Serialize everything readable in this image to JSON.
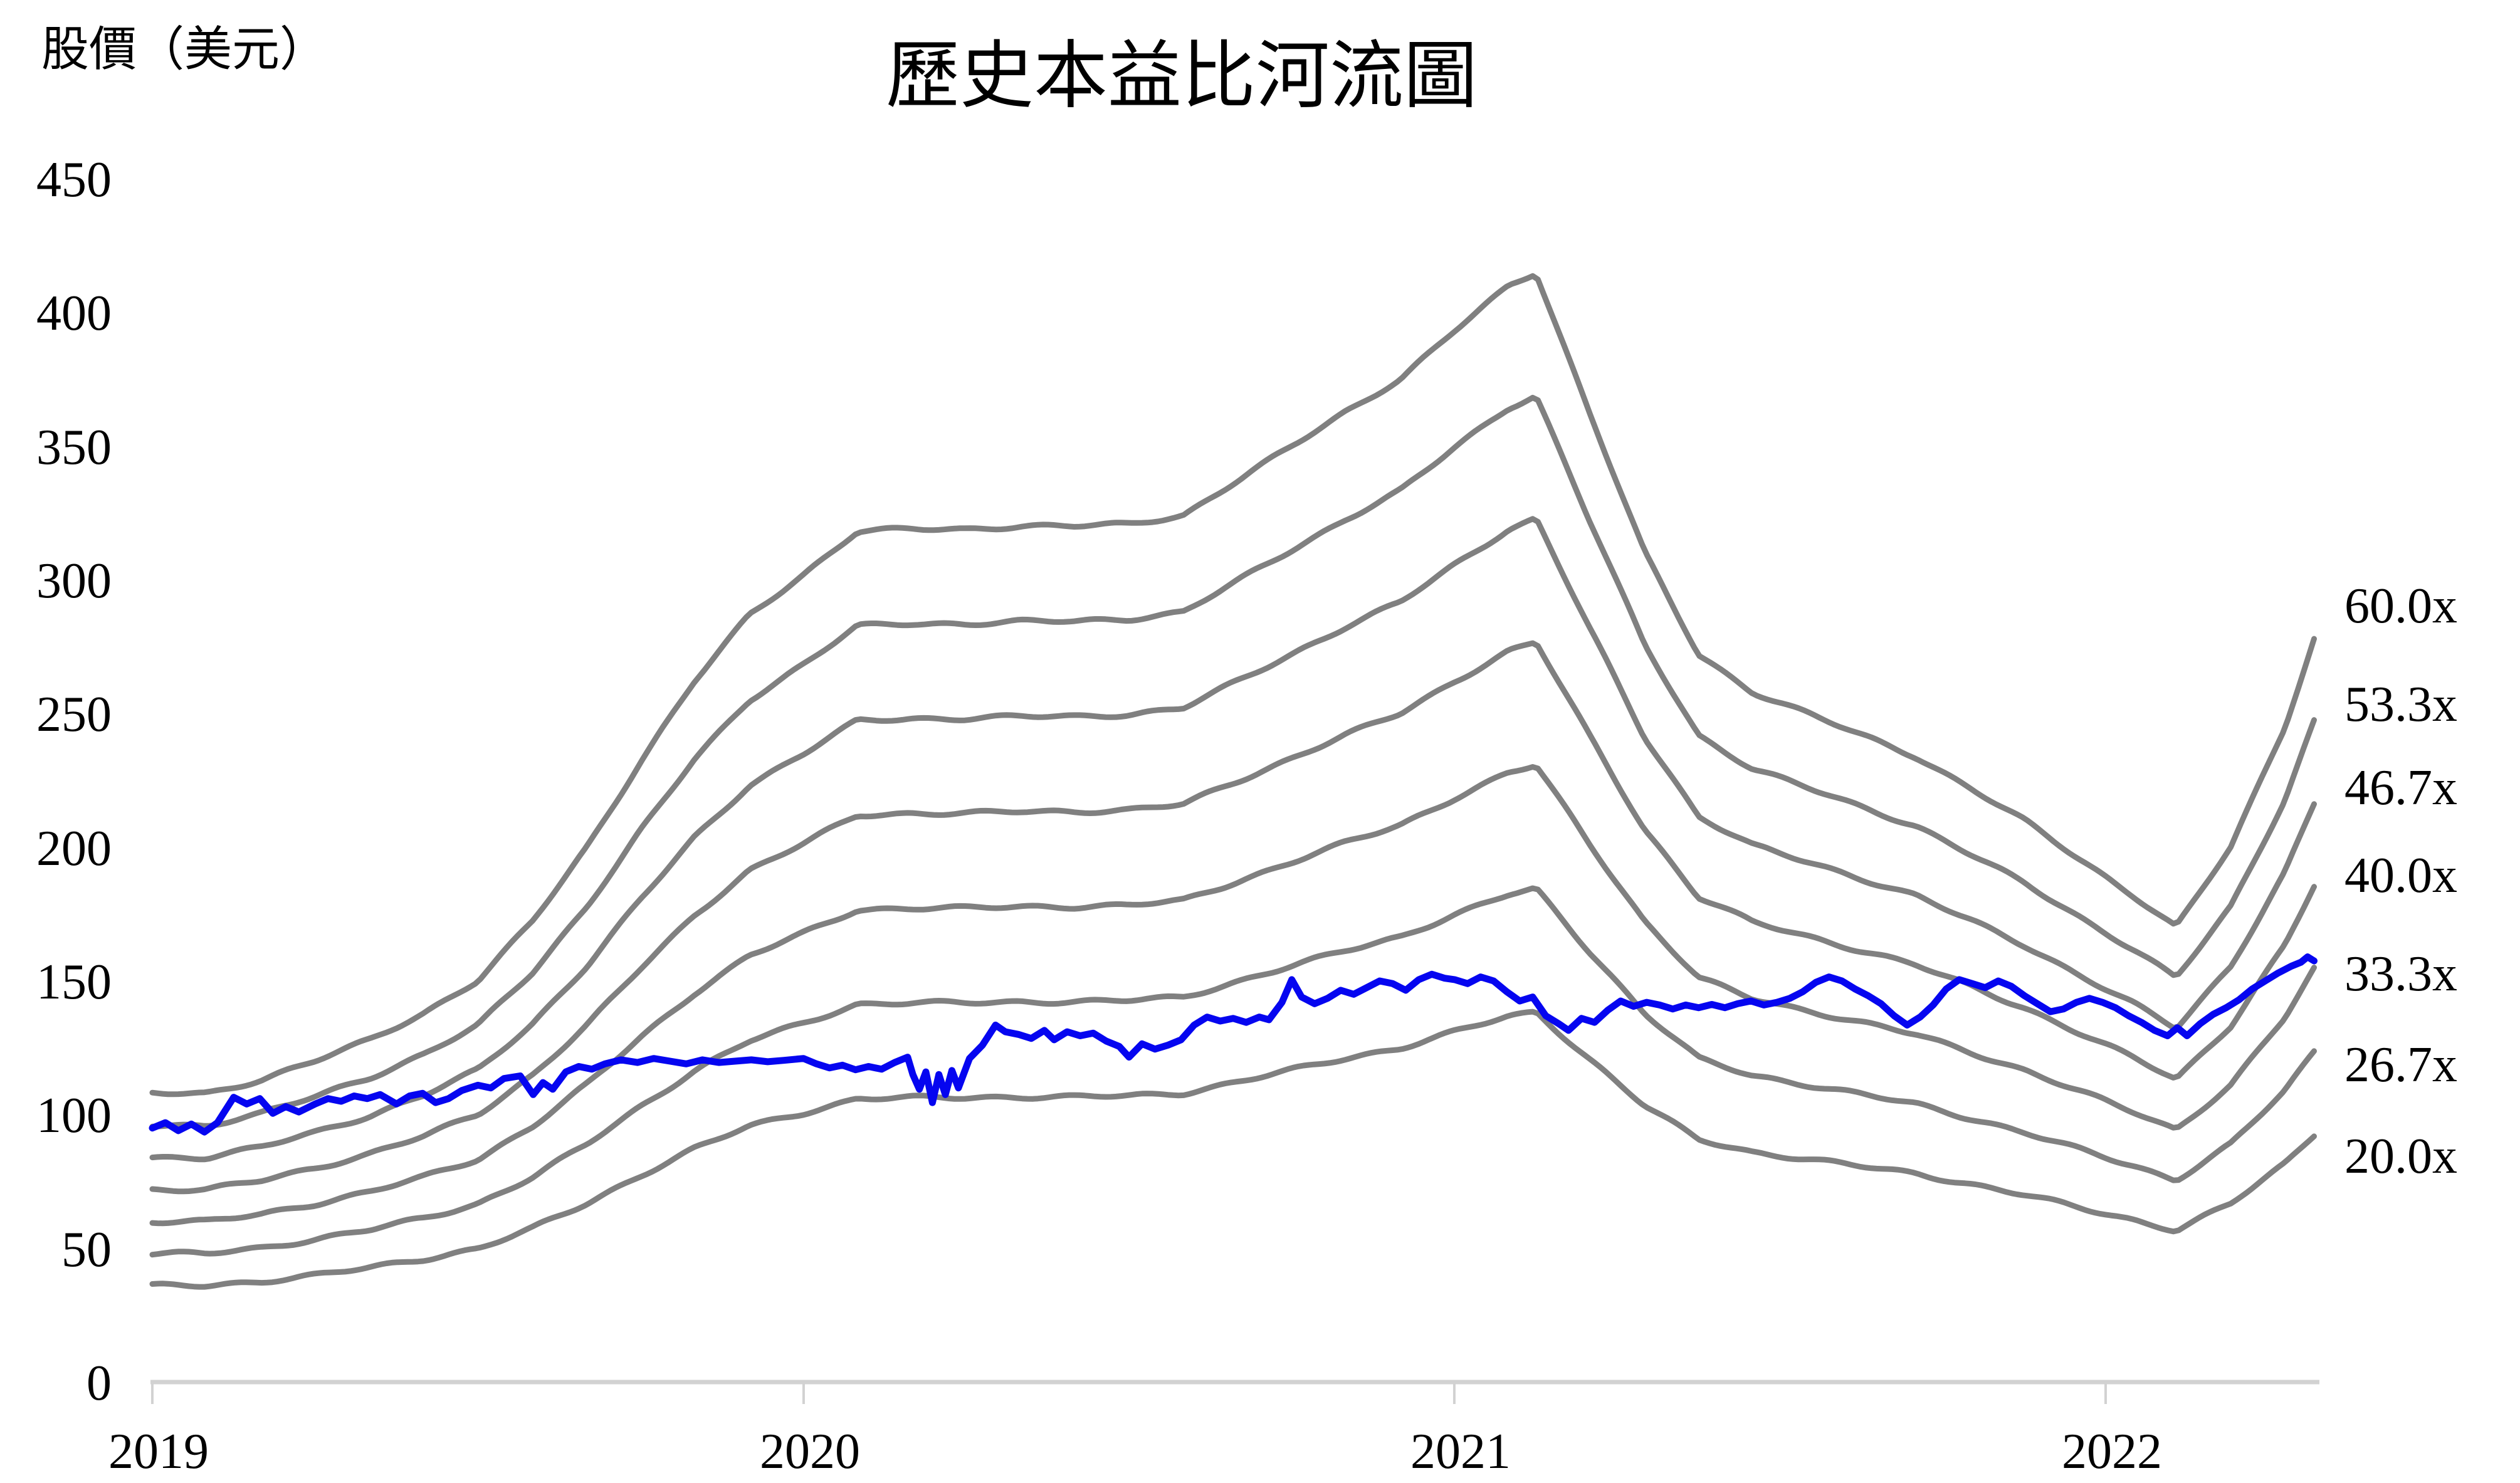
{
  "chart_data": {
    "type": "line",
    "title": "歷史本益比河流圖",
    "y_axis_label": "股價（美元）",
    "ylim": [
      0,
      450
    ],
    "y_tick_step": 50,
    "y_tick_labels": [
      "450",
      "400",
      "350",
      "300",
      "250",
      "200",
      "150",
      "100",
      "50",
      "0"
    ],
    "x_tick_labels": [
      "2019",
      "2020",
      "2021",
      "2022"
    ],
    "x_range_years": [
      2019.0,
      2022.32
    ],
    "grid": "off",
    "legend_position": "right-edge-labels",
    "colors": {
      "pe_bands": "#808080",
      "price": "#0505f0",
      "axis": "#d2d2d2",
      "text": "#000000",
      "background": "#ffffff"
    },
    "pe_bands": {
      "labels": [
        "60.0x",
        "53.3x",
        "46.7x",
        "40.0x",
        "33.3x",
        "26.7x",
        "20.0x"
      ],
      "multiples": [
        60,
        53.333,
        46.667,
        40,
        33.333,
        26.667,
        20
      ],
      "structure_note": "river chart: every band equals the 60.0x band scaled by multiple/60",
      "band_60x_points": [
        [
          0.0,
          108
        ],
        [
          0.083,
          108
        ],
        [
          0.167,
          113
        ],
        [
          0.25,
          120
        ],
        [
          0.333,
          128
        ],
        [
          0.417,
          138
        ],
        [
          0.5,
          150
        ],
        [
          0.583,
          172
        ],
        [
          0.667,
          200
        ],
        [
          0.75,
          232
        ],
        [
          0.833,
          262
        ],
        [
          0.917,
          287
        ],
        [
          1.0,
          302
        ],
        [
          1.083,
          318
        ],
        [
          1.167,
          319
        ],
        [
          1.25,
          319
        ],
        [
          1.333,
          320
        ],
        [
          1.417,
          320
        ],
        [
          1.5,
          321
        ],
        [
          1.583,
          324
        ],
        [
          1.667,
          337
        ],
        [
          1.75,
          350
        ],
        [
          1.833,
          363
        ],
        [
          1.917,
          375
        ],
        [
          2.0,
          393
        ],
        [
          2.083,
          410
        ],
        [
          2.125,
          415
        ],
        [
          2.208,
          362
        ],
        [
          2.292,
          310
        ],
        [
          2.375,
          272
        ],
        [
          2.458,
          258
        ],
        [
          2.542,
          250
        ],
        [
          2.625,
          242
        ],
        [
          2.708,
          234
        ],
        [
          2.792,
          222
        ],
        [
          2.875,
          210
        ],
        [
          2.958,
          196
        ],
        [
          3.042,
          182
        ],
        [
          3.108,
          170
        ],
        [
          3.192,
          200
        ],
        [
          3.275,
          245
        ],
        [
          3.32,
          278
        ]
      ]
    },
    "price_series": {
      "name": "股價",
      "points": [
        [
          0.0,
          95
        ],
        [
          0.02,
          97
        ],
        [
          0.04,
          94
        ],
        [
          0.06,
          96.5
        ],
        [
          0.08,
          93.5
        ],
        [
          0.1,
          97
        ],
        [
          0.125,
          106.5
        ],
        [
          0.145,
          104
        ],
        [
          0.165,
          106
        ],
        [
          0.185,
          100.5
        ],
        [
          0.205,
          103
        ],
        [
          0.225,
          101
        ],
        [
          0.25,
          104
        ],
        [
          0.27,
          106
        ],
        [
          0.29,
          105
        ],
        [
          0.31,
          107
        ],
        [
          0.33,
          106
        ],
        [
          0.35,
          107.5
        ],
        [
          0.375,
          104
        ],
        [
          0.395,
          107
        ],
        [
          0.415,
          108
        ],
        [
          0.435,
          104.5
        ],
        [
          0.455,
          106
        ],
        [
          0.475,
          109
        ],
        [
          0.5,
          111
        ],
        [
          0.52,
          110
        ],
        [
          0.54,
          113.5
        ],
        [
          0.565,
          114.5
        ],
        [
          0.585,
          107.5
        ],
        [
          0.6,
          112
        ],
        [
          0.615,
          109.5
        ],
        [
          0.635,
          116
        ],
        [
          0.655,
          118
        ],
        [
          0.675,
          117
        ],
        [
          0.695,
          119
        ],
        [
          0.72,
          120.5
        ],
        [
          0.745,
          119.5
        ],
        [
          0.77,
          121
        ],
        [
          0.795,
          120
        ],
        [
          0.82,
          119
        ],
        [
          0.845,
          120.5
        ],
        [
          0.87,
          119.5
        ],
        [
          0.895,
          120
        ],
        [
          0.92,
          120.5
        ],
        [
          0.945,
          119.8
        ],
        [
          0.97,
          120.3
        ],
        [
          1.0,
          121
        ],
        [
          1.02,
          119
        ],
        [
          1.04,
          117.5
        ],
        [
          1.06,
          118.5
        ],
        [
          1.08,
          116.8
        ],
        [
          1.1,
          118
        ],
        [
          1.12,
          117
        ],
        [
          1.14,
          119.5
        ],
        [
          1.16,
          121.5
        ],
        [
          1.168,
          115
        ],
        [
          1.178,
          109.5
        ],
        [
          1.188,
          116
        ],
        [
          1.198,
          104.5
        ],
        [
          1.208,
          115
        ],
        [
          1.218,
          107.5
        ],
        [
          1.228,
          116.5
        ],
        [
          1.238,
          110
        ],
        [
          1.255,
          121
        ],
        [
          1.275,
          126
        ],
        [
          1.295,
          133.5
        ],
        [
          1.31,
          131
        ],
        [
          1.33,
          130
        ],
        [
          1.35,
          128.5
        ],
        [
          1.37,
          131.5
        ],
        [
          1.385,
          128
        ],
        [
          1.405,
          131
        ],
        [
          1.425,
          129.5
        ],
        [
          1.445,
          130.5
        ],
        [
          1.465,
          127.5
        ],
        [
          1.485,
          125.5
        ],
        [
          1.5,
          121.5
        ],
        [
          1.52,
          126.5
        ],
        [
          1.54,
          124.5
        ],
        [
          1.56,
          126
        ],
        [
          1.58,
          128
        ],
        [
          1.6,
          133.5
        ],
        [
          1.62,
          136.5
        ],
        [
          1.64,
          135
        ],
        [
          1.66,
          136
        ],
        [
          1.68,
          134.5
        ],
        [
          1.7,
          136.5
        ],
        [
          1.715,
          135.5
        ],
        [
          1.735,
          142
        ],
        [
          1.75,
          150.5
        ],
        [
          1.765,
          144
        ],
        [
          1.785,
          141.5
        ],
        [
          1.805,
          143.5
        ],
        [
          1.825,
          146.5
        ],
        [
          1.845,
          145
        ],
        [
          1.865,
          147.5
        ],
        [
          1.885,
          150
        ],
        [
          1.905,
          149
        ],
        [
          1.925,
          146.5
        ],
        [
          1.945,
          150.5
        ],
        [
          1.965,
          152.5
        ],
        [
          1.985,
          151
        ],
        [
          2.0,
          150.5
        ],
        [
          2.02,
          149
        ],
        [
          2.04,
          151.5
        ],
        [
          2.06,
          150
        ],
        [
          2.08,
          146
        ],
        [
          2.1,
          142.5
        ],
        [
          2.12,
          144
        ],
        [
          2.14,
          137
        ],
        [
          2.16,
          134
        ],
        [
          2.175,
          131.5
        ],
        [
          2.195,
          136
        ],
        [
          2.215,
          134.5
        ],
        [
          2.235,
          139
        ],
        [
          2.255,
          142.5
        ],
        [
          2.275,
          140.5
        ],
        [
          2.295,
          142
        ],
        [
          2.315,
          141
        ],
        [
          2.335,
          139.5
        ],
        [
          2.355,
          141
        ],
        [
          2.375,
          140
        ],
        [
          2.395,
          141.2
        ],
        [
          2.415,
          140
        ],
        [
          2.435,
          141.5
        ],
        [
          2.455,
          142.5
        ],
        [
          2.475,
          141
        ],
        [
          2.495,
          142
        ],
        [
          2.515,
          143.5
        ],
        [
          2.535,
          146
        ],
        [
          2.555,
          149.5
        ],
        [
          2.575,
          151.5
        ],
        [
          2.595,
          150
        ],
        [
          2.615,
          147
        ],
        [
          2.635,
          144.5
        ],
        [
          2.655,
          141.5
        ],
        [
          2.675,
          137
        ],
        [
          2.695,
          133.5
        ],
        [
          2.715,
          136.5
        ],
        [
          2.735,
          141
        ],
        [
          2.755,
          147
        ],
        [
          2.775,
          150.5
        ],
        [
          2.795,
          149
        ],
        [
          2.815,
          147.5
        ],
        [
          2.835,
          150
        ],
        [
          2.855,
          148
        ],
        [
          2.875,
          144.5
        ],
        [
          2.895,
          141.5
        ],
        [
          2.915,
          138.5
        ],
        [
          2.935,
          139.5
        ],
        [
          2.955,
          142
        ],
        [
          2.975,
          143.5
        ],
        [
          2.995,
          142
        ],
        [
          3.015,
          140
        ],
        [
          3.035,
          137
        ],
        [
          3.055,
          134.5
        ],
        [
          3.075,
          131.5
        ],
        [
          3.095,
          129.5
        ],
        [
          3.11,
          132.5
        ],
        [
          3.125,
          129.5
        ],
        [
          3.145,
          134
        ],
        [
          3.165,
          137.5
        ],
        [
          3.185,
          140
        ],
        [
          3.205,
          143
        ],
        [
          3.225,
          147
        ],
        [
          3.245,
          150
        ],
        [
          3.265,
          153
        ],
        [
          3.285,
          155.5
        ],
        [
          3.3,
          157
        ],
        [
          3.31,
          159
        ],
        [
          3.32,
          157.5
        ]
      ]
    }
  }
}
